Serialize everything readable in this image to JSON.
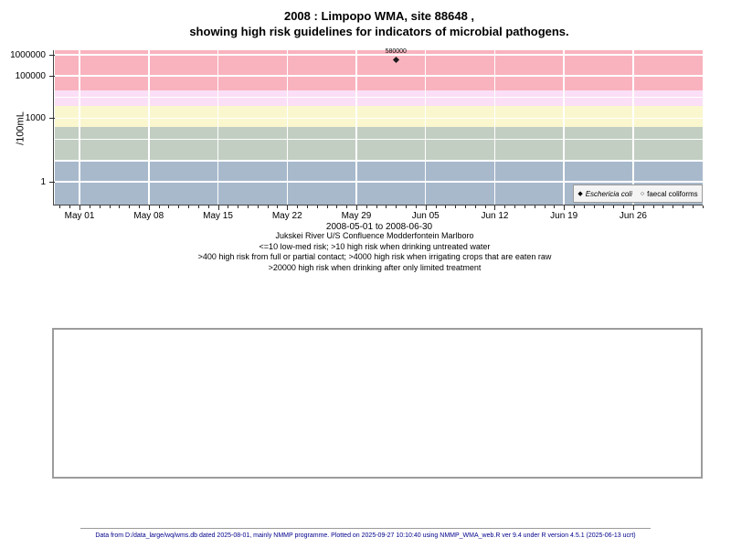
{
  "title": {
    "line1": "2008 : Limpopo WMA, site 88648 ,",
    "line2": "showing high risk guidelines for indicators of microbial pathogens."
  },
  "chart_data": {
    "type": "scatter",
    "ylabel": "/100mL",
    "y_scale": "log10",
    "y_log_range": [
      -1.122,
      6.216
    ],
    "y_ticks": [
      {
        "value": 1000000,
        "label": "1000000"
      },
      {
        "value": 100000,
        "label": "100000"
      },
      {
        "value": 1000,
        "label": "1000"
      },
      {
        "value": 1,
        "label": "1"
      }
    ],
    "y_gridlines": [
      1,
      10,
      100,
      1000,
      10000,
      100000,
      1000000
    ],
    "x_range_days": [
      -2.5,
      63.03
    ],
    "x_epoch": "2008-05-01",
    "x_minor_ticks": "daily",
    "x_ticks": [
      {
        "day": 0,
        "label": "May 01"
      },
      {
        "day": 7,
        "label": "May 08"
      },
      {
        "day": 14,
        "label": "May 15"
      },
      {
        "day": 21,
        "label": "May 22"
      },
      {
        "day": 28,
        "label": "May 29"
      },
      {
        "day": 35,
        "label": "Jun 05"
      },
      {
        "day": 42,
        "label": "Jun 12"
      },
      {
        "day": 49,
        "label": "Jun 19"
      },
      {
        "day": 56,
        "label": "Jun 26"
      }
    ],
    "bands": [
      {
        "lo": 20000,
        "hi": null,
        "color": "#f9b3be"
      },
      {
        "lo": 4000,
        "hi": 20000,
        "color": "#fbdff6"
      },
      {
        "lo": 400,
        "hi": 4000,
        "color": "#faf7cf"
      },
      {
        "lo": 10,
        "hi": 400,
        "color": "#c3cec2"
      },
      {
        "lo": null,
        "hi": 10,
        "color": "#a8b9cc"
      }
    ],
    "series": [
      {
        "name": "Eschericia coli",
        "marker": "filled-diamond",
        "points": [
          {
            "day": 32,
            "date": "2008-06-02",
            "value": 580000,
            "label": "580000"
          }
        ]
      },
      {
        "name": "faecal coliforms",
        "marker": "open-circle",
        "points": []
      }
    ],
    "subtitle": "2008-05-01 to 2008-06-30"
  },
  "legend": {
    "items": [
      {
        "marker": "◆",
        "label": "Eschericia coli"
      },
      {
        "marker": "○",
        "label": "faecal coliforms"
      }
    ]
  },
  "notes": {
    "lines": [
      "Jukskei River U/S Confluence Modderfontein Marlboro",
      "<=10 low-med risk; >10 high risk when drinking untreated water",
      ">400 high risk from full or partial contact; >4000 high risk when irrigating crops that are eaten raw",
      ">20000 high risk when drinking after only limited treatment"
    ]
  },
  "footer": {
    "text": "Data from D:/data_large/wq/wms.db dated 2025-08-01, mainly NMMP programme. Plotted on 2025-09-27 10:10:40 using NMMP_WMA_web.R ver 9.4 under R version 4.5.1 (2025-06-13 ucrt)"
  },
  "colors": {
    "gridline": "#ffffff",
    "axis": "#454545",
    "marker": "#1a1a1a",
    "legend_bg": "#f4f4f4",
    "footer_text": "#00008b"
  }
}
